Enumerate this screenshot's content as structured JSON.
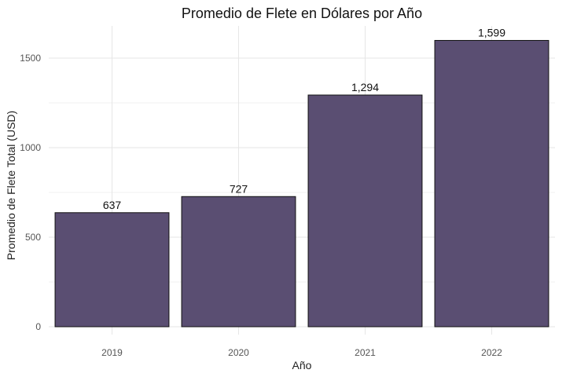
{
  "chart_data": {
    "type": "bar",
    "title": "Promedio de Flete en Dólares por Año",
    "xlabel": "Año",
    "ylabel": "Promedio de Flete Total (USD)",
    "categories": [
      "2019",
      "2020",
      "2021",
      "2022"
    ],
    "values": [
      637,
      727,
      1294,
      1599
    ],
    "data_labels": [
      "637",
      "727",
      "1,294",
      "1,599"
    ],
    "ylim": [
      0,
      1680
    ],
    "y_ticks": [
      0,
      500,
      1000,
      1500
    ],
    "y_tick_labels": [
      "0",
      "500",
      "1000",
      "1500"
    ],
    "grid": true,
    "colors": {
      "bar_fill": "#5a4e72",
      "bar_stroke": "#111111"
    }
  }
}
